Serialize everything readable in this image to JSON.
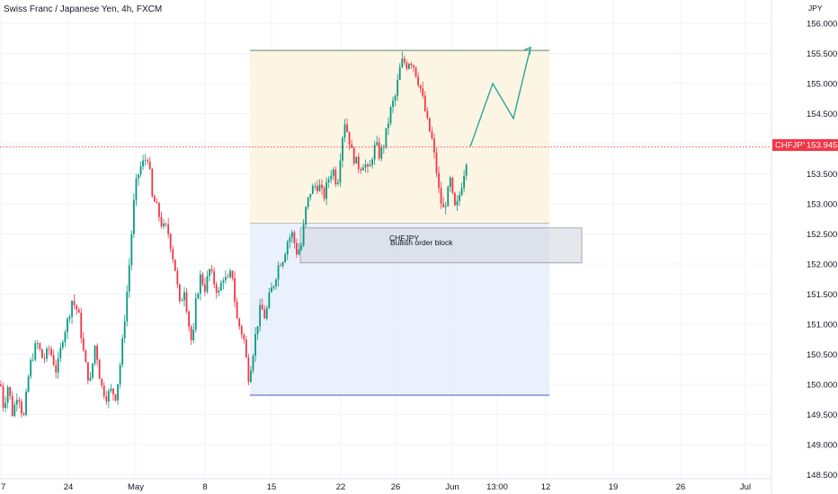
{
  "chart_data": {
    "type": "candlestick",
    "title": "Swiss Franc / Japanese Yen, 4h, FXCM",
    "currency": "JPY",
    "y_ticks": [
      148.5,
      149.0,
      149.5,
      150.0,
      150.5,
      151.0,
      151.5,
      152.0,
      152.5,
      153.0,
      153.5,
      154.0,
      154.5,
      155.0,
      155.5,
      156.0
    ],
    "y_tick_labels": [
      "148.500",
      "149.000",
      "149.500",
      "150.000",
      "150.500",
      "151.000",
      "151.500",
      "152.000",
      "152.500",
      "153.000",
      "153.500",
      "154.000",
      "154.500",
      "155.000",
      "155.500",
      "156.000"
    ],
    "ylim": [
      148.35,
      156.15
    ],
    "x_tick_labels": [
      "7",
      "24",
      "May",
      "8",
      "15",
      "22",
      "26",
      "Jun",
      "13:00",
      "12",
      "19",
      "26",
      "Jul"
    ],
    "current_price": {
      "symbol": "CHFJPY",
      "value": "153.945",
      "price": 153.945,
      "color": "#f23645"
    },
    "annotations": {
      "order_block_symbol": "CHFJPY",
      "order_block_label": "Bullish order block",
      "order_block_range": [
        152.02,
        152.6
      ],
      "target_zone": {
        "from": 152.68,
        "to": 155.55
      },
      "stop_zone": {
        "from": 149.82,
        "to": 152.68
      },
      "projection_prices": [
        153.95,
        155.0,
        154.42,
        155.6
      ]
    },
    "candles": {
      "start_price": 150.0,
      "path": [
        [
          0,
          150.1
        ],
        [
          4,
          149.6
        ],
        [
          9,
          150.0
        ],
        [
          14,
          149.5
        ],
        [
          20,
          149.9
        ],
        [
          26,
          149.4
        ],
        [
          33,
          150.3
        ],
        [
          41,
          150.7
        ],
        [
          48,
          150.4
        ],
        [
          55,
          150.6
        ],
        [
          63,
          150.2
        ],
        [
          70,
          150.8
        ],
        [
          76,
          151.1
        ],
        [
          80,
          151.4
        ],
        [
          87,
          151.2
        ],
        [
          94,
          150.4
        ],
        [
          100,
          150.0
        ],
        [
          106,
          150.7
        ],
        [
          112,
          150.0
        ],
        [
          118,
          149.8
        ],
        [
          124,
          149.9
        ],
        [
          129,
          149.8
        ],
        [
          135,
          150.5
        ],
        [
          141,
          151.5
        ],
        [
          145,
          152.2
        ],
        [
          148,
          152.9
        ],
        [
          152,
          153.4
        ],
        [
          156,
          153.6
        ],
        [
          160,
          153.7
        ],
        [
          165,
          153.8
        ],
        [
          169,
          153.1
        ],
        [
          173,
          153.0
        ],
        [
          177,
          152.8
        ],
        [
          181,
          152.6
        ],
        [
          186,
          152.6
        ],
        [
          190,
          152.3
        ],
        [
          195,
          151.9
        ],
        [
          200,
          151.3
        ],
        [
          205,
          151.6
        ],
        [
          210,
          151.0
        ],
        [
          214,
          150.6
        ],
        [
          218,
          151.4
        ],
        [
          223,
          151.8
        ],
        [
          228,
          151.6
        ],
        [
          233,
          151.9
        ],
        [
          238,
          151.7
        ],
        [
          243,
          151.5
        ],
        [
          248,
          151.8
        ],
        [
          253,
          151.7
        ],
        [
          258,
          151.9
        ],
        [
          263,
          151.1
        ],
        [
          268,
          150.9
        ],
        [
          272,
          150.7
        ],
        [
          276,
          150.1
        ],
        [
          280,
          150.4
        ],
        [
          285,
          150.9
        ],
        [
          290,
          151.3
        ],
        [
          295,
          151.1
        ],
        [
          300,
          151.5
        ],
        [
          305,
          151.7
        ],
        [
          310,
          152.0
        ],
        [
          315,
          152.1
        ],
        [
          320,
          152.4
        ],
        [
          325,
          152.5
        ],
        [
          330,
          152.2
        ],
        [
          335,
          152.3
        ],
        [
          340,
          152.9
        ],
        [
          345,
          153.2
        ],
        [
          350,
          153.3
        ],
        [
          355,
          153.3
        ],
        [
          360,
          153.1
        ],
        [
          365,
          153.4
        ],
        [
          370,
          153.6
        ],
        [
          375,
          153.3
        ],
        [
          379,
          153.9
        ],
        [
          383,
          154.4
        ],
        [
          388,
          154.1
        ],
        [
          392,
          153.8
        ],
        [
          396,
          153.7
        ],
        [
          400,
          153.6
        ],
        [
          405,
          153.7
        ],
        [
          410,
          153.5
        ],
        [
          414,
          153.8
        ],
        [
          418,
          154.0
        ],
        [
          422,
          153.8
        ],
        [
          427,
          154.0
        ],
        [
          431,
          154.3
        ],
        [
          435,
          154.6
        ],
        [
          440,
          154.8
        ],
        [
          444,
          155.2
        ],
        [
          448,
          155.4
        ],
        [
          452,
          155.3
        ],
        [
          456,
          155.4
        ],
        [
          460,
          155.3
        ],
        [
          464,
          155.1
        ],
        [
          468,
          154.9
        ],
        [
          472,
          154.6
        ],
        [
          476,
          154.3
        ],
        [
          480,
          154.1
        ],
        [
          485,
          153.6
        ],
        [
          489,
          153.1
        ],
        [
          493,
          152.9
        ],
        [
          497,
          153.1
        ],
        [
          501,
          153.4
        ],
        [
          505,
          152.9
        ],
        [
          509,
          153.0
        ],
        [
          513,
          153.3
        ],
        [
          517,
          153.6
        ],
        [
          521,
          153.95
        ]
      ]
    }
  }
}
